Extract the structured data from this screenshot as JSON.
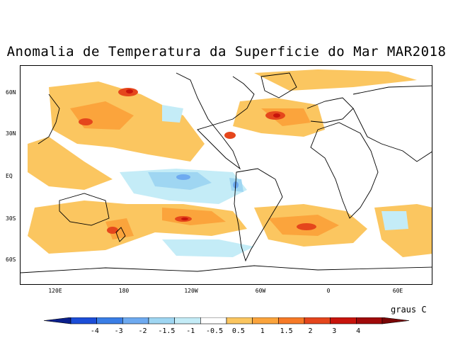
{
  "title": "Anomalia de Temperatura da Superficie do Mar MAR2018",
  "units_label": "graus C",
  "lat_labels": [
    "60N",
    "30N",
    "EQ",
    "30S",
    "60S"
  ],
  "lon_labels": [
    "120E",
    "180",
    "120W",
    "60W",
    "0",
    "60E"
  ],
  "colorbar": {
    "ticks": [
      "-4",
      "-3",
      "-2",
      "-1.5",
      "-1",
      "-0.5",
      "0.5",
      "1",
      "1.5",
      "2",
      "3",
      "4"
    ],
    "colors": [
      "#0a1f8c",
      "#1c4ed8",
      "#3a7ee6",
      "#6eaaf0",
      "#9fd6f2",
      "#c4ecf7",
      "#ffffff",
      "#fbc660",
      "#fba43c",
      "#f77a27",
      "#e5461c",
      "#c8140c",
      "#a00a0a",
      "#7a0606"
    ]
  },
  "legend_colors": {
    "warm_light": "#fbc660",
    "warm_mid": "#fba43c",
    "warm_strong": "#f77a27",
    "warm_hot": "#e5461c",
    "warm_extreme": "#c8140c",
    "cold_light": "#c4ecf7",
    "cold_mid": "#9fd6f2",
    "cold_strong": "#6eaaf0"
  }
}
